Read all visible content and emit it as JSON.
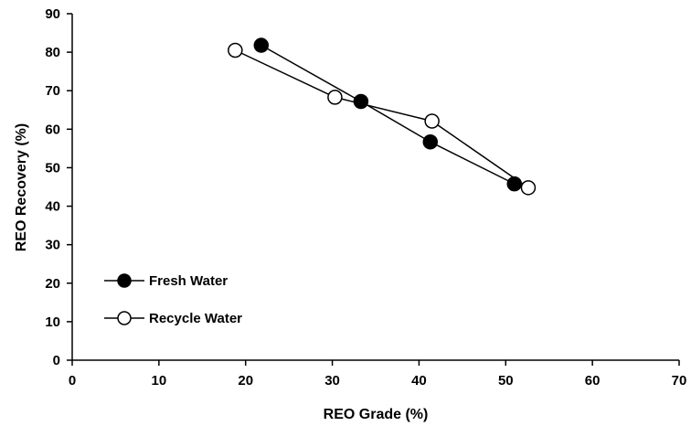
{
  "chart_data": {
    "type": "line",
    "title": "",
    "xlabel": "REO Grade (%)",
    "ylabel": "REO Recovery (%)",
    "xlim": [
      0,
      70
    ],
    "ylim": [
      0,
      90
    ],
    "xticks": [
      0,
      10,
      20,
      30,
      40,
      50,
      60,
      70
    ],
    "yticks": [
      0,
      10,
      20,
      30,
      40,
      50,
      60,
      70,
      80,
      90
    ],
    "grid": false,
    "legend_position": "bottom-left",
    "series": [
      {
        "name": "Fresh Water",
        "marker": "filled-circle",
        "color": "#000000",
        "points": [
          {
            "x": 21.8,
            "y": 81.8
          },
          {
            "x": 33.3,
            "y": 67.2
          },
          {
            "x": 41.3,
            "y": 56.7
          },
          {
            "x": 51.0,
            "y": 45.8
          }
        ]
      },
      {
        "name": "Recycle Water",
        "marker": "open-circle",
        "color": "#000000",
        "points": [
          {
            "x": 18.8,
            "y": 80.5
          },
          {
            "x": 30.3,
            "y": 68.3
          },
          {
            "x": 41.5,
            "y": 62.1
          },
          {
            "x": 52.6,
            "y": 44.8
          }
        ]
      }
    ]
  }
}
